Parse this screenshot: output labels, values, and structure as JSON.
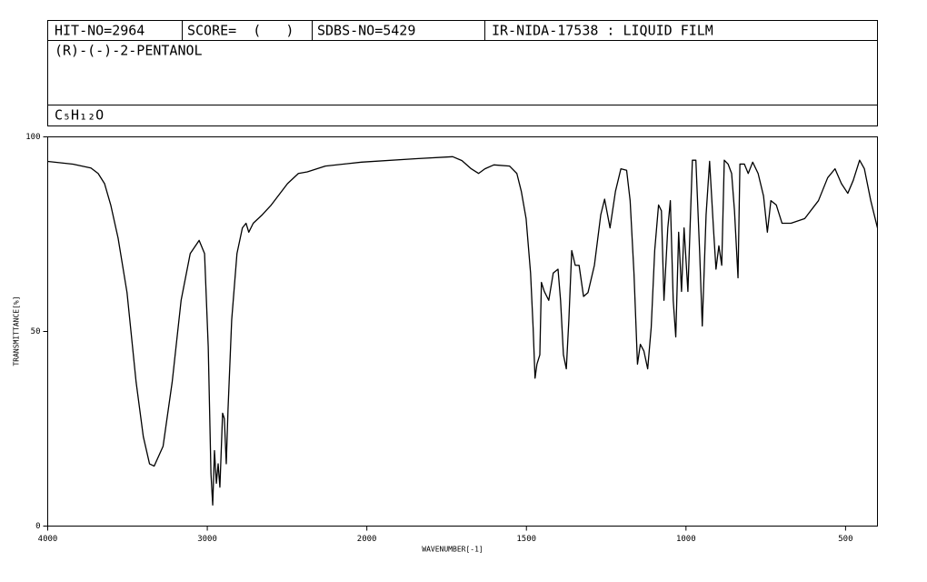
{
  "header": {
    "hit_no": "HIT-NO=2964",
    "score": "SCORE=  (   )",
    "sdbs_no": "SDBS-NO=5429",
    "method": "IR-NIDA-17538 : LIQUID FILM",
    "compound": "(R)-(-)-2-PENTANOL",
    "formula": "C₅H₁₂O"
  },
  "chart_data": {
    "type": "line",
    "xlabel": "WAVENUMBER[-1]",
    "ylabel": "TRANSMITTANCE[%]",
    "color": "#000000",
    "xlim": [
      4000,
      400
    ],
    "x_break": 2000,
    "ylim": [
      0,
      100
    ],
    "xticks": [
      4000,
      3000,
      2000,
      1500,
      1000,
      500
    ],
    "yticks": [
      0,
      50,
      100
    ],
    "grid": false,
    "x": [
      4000,
      3842,
      3729,
      3684,
      3644,
      3605,
      3559,
      3503,
      3446,
      3401,
      3362,
      3333,
      3277,
      3220,
      3164,
      3107,
      3051,
      3017,
      2994,
      2977,
      2966,
      2955,
      2943,
      2932,
      2921,
      2904,
      2893,
      2881,
      2870,
      2847,
      2814,
      2780,
      2757,
      2740,
      2712,
      2655,
      2599,
      2497,
      2429,
      2373,
      2260,
      2034,
      1845,
      1731,
      1702,
      1673,
      1650,
      1630,
      1602,
      1553,
      1530,
      1516,
      1501,
      1487,
      1479,
      1473,
      1467,
      1458,
      1453,
      1444,
      1430,
      1416,
      1401,
      1393,
      1384,
      1375,
      1367,
      1358,
      1347,
      1335,
      1321,
      1307,
      1287,
      1267,
      1255,
      1238,
      1221,
      1204,
      1186,
      1175,
      1163,
      1152,
      1143,
      1132,
      1120,
      1109,
      1098,
      1086,
      1077,
      1069,
      1057,
      1049,
      1040,
      1032,
      1023,
      1014,
      1006,
      994,
      980,
      969,
      957,
      949,
      937,
      926,
      914,
      906,
      897,
      888,
      880,
      868,
      857,
      848,
      837,
      831,
      817,
      805,
      791,
      774,
      757,
      745,
      734,
      717,
      699,
      671,
      628,
      585,
      556,
      533,
      513,
      493,
      476,
      456,
      441,
      421,
      400
    ],
    "values": [
      93.7,
      93,
      92,
      90.6,
      88,
      82.5,
      74,
      60,
      37,
      23,
      16,
      15.4,
      20.5,
      37,
      58,
      70,
      73.4,
      70,
      46,
      13.5,
      5.4,
      19.4,
      11,
      16,
      10,
      29,
      27.6,
      16,
      30,
      53,
      70,
      76.6,
      77.8,
      75.5,
      77.8,
      80,
      82.5,
      88,
      90.6,
      91,
      92.5,
      93.5,
      94.4,
      94.9,
      93.9,
      91.8,
      90.6,
      91.8,
      92.8,
      92.5,
      90.6,
      86,
      79,
      65,
      51,
      38,
      41.6,
      44,
      62.6,
      60.3,
      58,
      65,
      66,
      58,
      44,
      40.4,
      53,
      70.8,
      67,
      67,
      59,
      60,
      67,
      80,
      84,
      76.6,
      86,
      91.8,
      91.4,
      83.6,
      65,
      41.6,
      46.7,
      45,
      40.4,
      51,
      70.8,
      82.5,
      81,
      58,
      76.6,
      83.6,
      58,
      48.6,
      75.5,
      60.3,
      76.6,
      60.3,
      94,
      94,
      70,
      51.4,
      80,
      93.7,
      76.6,
      66,
      72,
      67,
      94,
      93,
      90.6,
      81,
      63.8,
      93,
      93,
      90.6,
      93.5,
      90.6,
      84.8,
      75.5,
      83.6,
      82.5,
      77.8,
      77.8,
      79,
      83.6,
      89.5,
      91.8,
      88,
      85.5,
      88.8,
      94,
      91.8,
      83.6,
      76.6
    ]
  }
}
